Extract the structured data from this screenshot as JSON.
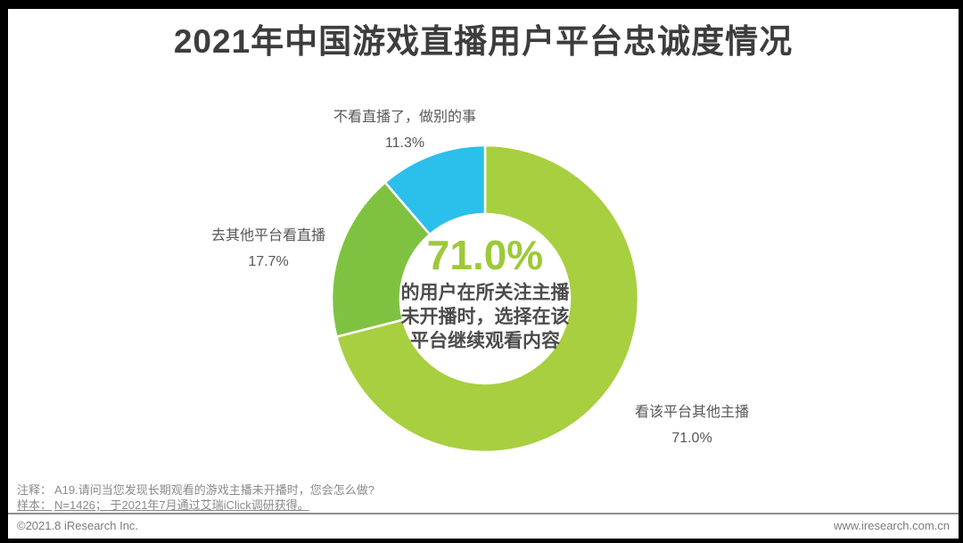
{
  "page": {
    "title": "2021年中国游戏直播用户平台忠诚度情况"
  },
  "chart_data": {
    "type": "pie",
    "variant": "donut",
    "title": "2021年中国游戏直播用户平台忠诚度情况",
    "direction": "clockwise",
    "start_angle_deg": 0,
    "inner_radius_ratio": 0.55,
    "segments": [
      {
        "label": "看该平台其他主播",
        "value": 71.0,
        "display": "71.0%",
        "color": "#a8cf3f"
      },
      {
        "label": "去其他平台看直播",
        "value": 17.7,
        "display": "17.7%",
        "color": "#7fc241"
      },
      {
        "label": "不看直播了，做别的事",
        "value": 11.3,
        "display": "11.3%",
        "color": "#2bbfec"
      }
    ],
    "center_annotation": "71.0% 的用户在所关注主播未开播时，选择在该平台继续观看内容"
  },
  "labels": {
    "top": {
      "line1": "不看直播了，做别的事",
      "line2": "11.3%"
    },
    "left": {
      "line1": "去其他平台看直播",
      "line2": "17.7%"
    },
    "right": {
      "line1": "看该平台其他主播",
      "line2": "71.0%"
    }
  },
  "center": {
    "percent": "71.0%",
    "line1": "的用户在所关注主播",
    "line2": "未开播时，选择在该",
    "line3": "平台继续观看内容"
  },
  "notes": {
    "note1_label": "注释：",
    "note1_text": "A19.请问当您发现长期观看的游戏主播未开播时，您会怎么做?",
    "note2_label": "样本：",
    "note2_text": "N=1426； 于2021年7月通过艾瑞iClick调研获得。"
  },
  "footer": {
    "copyright": "©2021.8 iResearch Inc.",
    "website": "www.iresearch.com.cn"
  },
  "colors": {
    "main_green": "#a8cf3f",
    "dark_green": "#7fc241",
    "cyan": "#2bbfec",
    "center_percent_green": "#9dc93a",
    "title_text": "#3d3d3d",
    "label_text": "#595757",
    "note_text": "#8a8a8a"
  }
}
